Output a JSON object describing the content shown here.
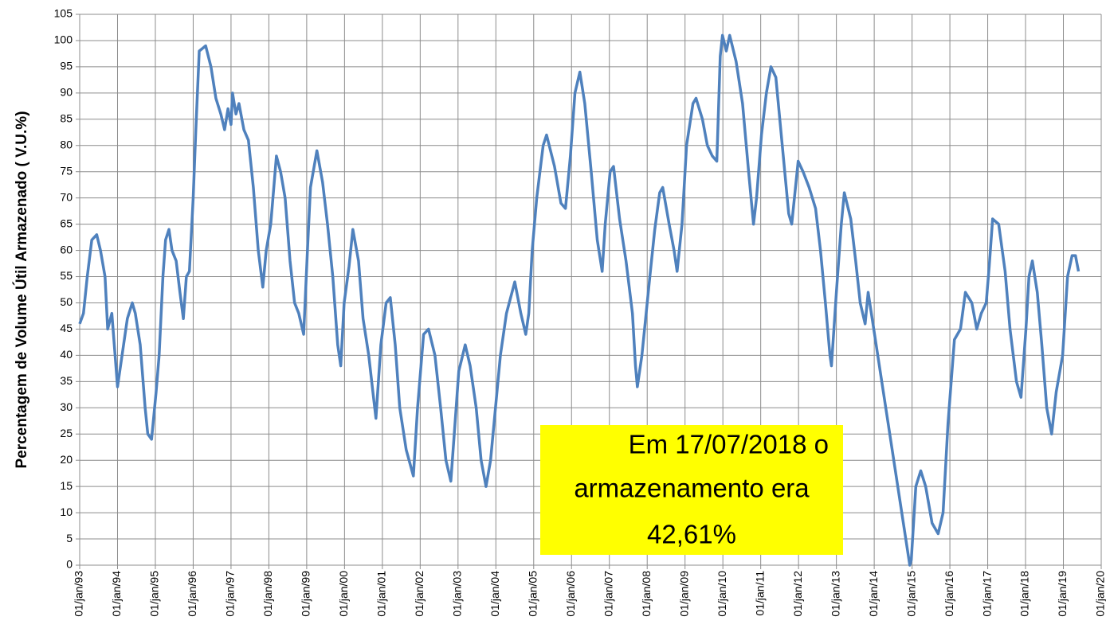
{
  "chart_data": {
    "type": "line",
    "y_label": "Percentagem de Volume Útil Armazenado ( V.U.%)",
    "annotation": [
      "Em 17/07/2018  o",
      "armazenamento era",
      "42,61%"
    ],
    "annotation_color": "#ffff00",
    "grid": true,
    "xlim": [
      1993,
      2020
    ],
    "xticks": [
      {
        "value": 1993,
        "label": "01/jan/93"
      },
      {
        "value": 1994,
        "label": "01/jan/94"
      },
      {
        "value": 1995,
        "label": "01/jan/95"
      },
      {
        "value": 1996,
        "label": "01/jan/96"
      },
      {
        "value": 1997,
        "label": "01/jan/97"
      },
      {
        "value": 1998,
        "label": "01/jan/98"
      },
      {
        "value": 1999,
        "label": "01/jan/99"
      },
      {
        "value": 2000,
        "label": "01/jan/00"
      },
      {
        "value": 2001,
        "label": "01/jan/01"
      },
      {
        "value": 2002,
        "label": "01/jan/02"
      },
      {
        "value": 2003,
        "label": "01/jan/03"
      },
      {
        "value": 2004,
        "label": "01/jan/04"
      },
      {
        "value": 2005,
        "label": "01/jan/05"
      },
      {
        "value": 2006,
        "label": "01/jan/06"
      },
      {
        "value": 2007,
        "label": "01/jan/07"
      },
      {
        "value": 2008,
        "label": "01/jan/08"
      },
      {
        "value": 2009,
        "label": "01/jan/09"
      },
      {
        "value": 2010,
        "label": "01/jan/10"
      },
      {
        "value": 2011,
        "label": "01/jan/11"
      },
      {
        "value": 2012,
        "label": "01/jan/12"
      },
      {
        "value": 2013,
        "label": "01/jan/13"
      },
      {
        "value": 2014,
        "label": "01/jan/14"
      },
      {
        "value": 2015,
        "label": "01/jan/15"
      },
      {
        "value": 2016,
        "label": "01/jan/16"
      },
      {
        "value": 2017,
        "label": "01/jan/17"
      },
      {
        "value": 2018,
        "label": "01/jan/18"
      },
      {
        "value": 2019,
        "label": "01/jan/19"
      },
      {
        "value": 2020,
        "label": "01/jan/20"
      }
    ],
    "ylim": [
      0,
      105
    ],
    "yticks": [
      0,
      5,
      10,
      15,
      20,
      25,
      30,
      35,
      40,
      45,
      50,
      55,
      60,
      65,
      70,
      75,
      80,
      85,
      90,
      95,
      100,
      105
    ],
    "series": [
      {
        "color": "#4f81bd",
        "x": [
          1993.0,
          1993.1,
          1993.2,
          1993.32,
          1993.45,
          1993.55,
          1993.67,
          1993.74,
          1993.85,
          1994.0,
          1994.1,
          1994.26,
          1994.39,
          1994.47,
          1994.6,
          1994.73,
          1994.8,
          1994.9,
          1995.02,
          1995.1,
          1995.2,
          1995.27,
          1995.36,
          1995.44,
          1995.55,
          1995.65,
          1995.74,
          1995.82,
          1995.9,
          1996.0,
          1996.07,
          1996.16,
          1996.33,
          1996.47,
          1996.6,
          1996.73,
          1996.83,
          1996.92,
          1997.0,
          1997.04,
          1997.13,
          1997.21,
          1997.34,
          1997.46,
          1997.59,
          1997.72,
          1997.84,
          1997.93,
          1998.05,
          1998.2,
          1998.31,
          1998.43,
          1998.56,
          1998.68,
          1998.79,
          1998.92,
          1999.02,
          1999.1,
          1999.27,
          1999.42,
          1999.55,
          1999.69,
          1999.82,
          1999.9,
          1999.99,
          2000.12,
          2000.22,
          2000.37,
          2000.49,
          2000.64,
          2000.75,
          2000.83,
          2000.96,
          2001.1,
          2001.21,
          2001.34,
          2001.46,
          2001.63,
          2001.82,
          2001.93,
          2002.09,
          2002.22,
          2002.39,
          2002.54,
          2002.68,
          2002.81,
          2002.9,
          2003.02,
          2003.19,
          2003.32,
          2003.48,
          2003.61,
          2003.74,
          2003.86,
          2003.99,
          2004.12,
          2004.28,
          2004.5,
          2004.66,
          2004.79,
          2004.87,
          2004.96,
          2005.08,
          2005.25,
          2005.34,
          2005.55,
          2005.72,
          2005.84,
          2005.97,
          2006.09,
          2006.22,
          2006.35,
          2006.52,
          2006.68,
          2006.81,
          2006.89,
          2007.02,
          2007.11,
          2007.27,
          2007.44,
          2007.61,
          2007.69,
          2007.74,
          2007.86,
          2008.07,
          2008.2,
          2008.33,
          2008.41,
          2008.58,
          2008.71,
          2008.79,
          2008.92,
          2009.04,
          2009.21,
          2009.29,
          2009.46,
          2009.59,
          2009.72,
          2009.84,
          2009.93,
          2009.99,
          2010.09,
          2010.18,
          2010.35,
          2010.52,
          2010.68,
          2010.81,
          2010.89,
          2011.02,
          2011.15,
          2011.27,
          2011.4,
          2011.57,
          2011.74,
          2011.82,
          2011.99,
          2012.12,
          2012.28,
          2012.45,
          2012.58,
          2012.71,
          2012.83,
          2012.87,
          2013.0,
          2013.13,
          2013.21,
          2013.38,
          2013.51,
          2013.63,
          2013.76,
          2013.84,
          2014.94,
          2014.98,
          2015.1,
          2015.23,
          2015.36,
          2015.53,
          2015.69,
          2015.82,
          2015.95,
          2016.12,
          2016.28,
          2016.41,
          2016.58,
          2016.71,
          2016.83,
          2016.96,
          2017.04,
          2017.13,
          2017.29,
          2017.46,
          2017.59,
          2017.76,
          2017.88,
          2018.01,
          2018.09,
          2018.18,
          2018.31,
          2018.43,
          2018.56,
          2018.69,
          2018.81,
          2018.98,
          2019.11,
          2019.23,
          2019.32,
          2019.4
        ],
        "values": [
          46,
          48,
          55,
          62,
          63,
          60,
          55,
          45,
          48,
          34,
          39,
          47,
          50,
          48,
          42,
          30,
          25,
          24,
          33,
          40,
          55,
          62,
          64,
          60,
          58,
          52,
          47,
          55,
          56,
          70,
          83,
          98,
          99,
          95,
          89,
          86,
          83,
          87,
          84,
          90,
          86,
          88,
          83,
          81,
          72,
          60,
          53,
          60,
          65,
          78,
          75,
          70,
          58,
          50,
          48,
          44,
          60,
          72,
          79,
          73,
          65,
          55,
          42,
          38,
          50,
          57,
          64,
          58,
          47,
          40,
          33,
          28,
          42,
          50,
          51,
          42,
          30,
          22,
          17,
          30,
          44,
          45,
          40,
          30,
          20,
          16,
          25,
          37,
          42,
          38,
          30,
          20,
          15,
          20,
          30,
          40,
          48,
          54,
          48,
          44,
          48,
          60,
          70,
          80,
          82,
          76,
          69,
          68,
          78,
          90,
          94,
          88,
          75,
          62,
          56,
          65,
          75,
          76,
          66,
          58,
          48,
          38,
          34,
          40,
          55,
          64,
          71,
          72,
          65,
          60,
          56,
          65,
          80,
          88,
          89,
          85,
          80,
          78,
          77,
          97,
          101,
          98,
          101,
          96,
          88,
          75,
          65,
          70,
          82,
          90,
          95,
          93,
          80,
          67,
          65,
          77,
          75,
          72,
          68,
          60,
          50,
          40,
          38,
          52,
          65,
          71,
          66,
          58,
          50,
          46,
          52,
          0,
          1,
          15,
          18,
          15,
          8,
          6,
          10,
          27,
          43,
          45,
          52,
          50,
          45,
          48,
          50,
          57,
          66,
          65,
          56,
          45,
          35,
          32,
          45,
          55,
          58,
          52,
          42,
          30,
          25,
          33,
          40,
          55,
          59,
          59,
          56
        ]
      }
    ]
  }
}
